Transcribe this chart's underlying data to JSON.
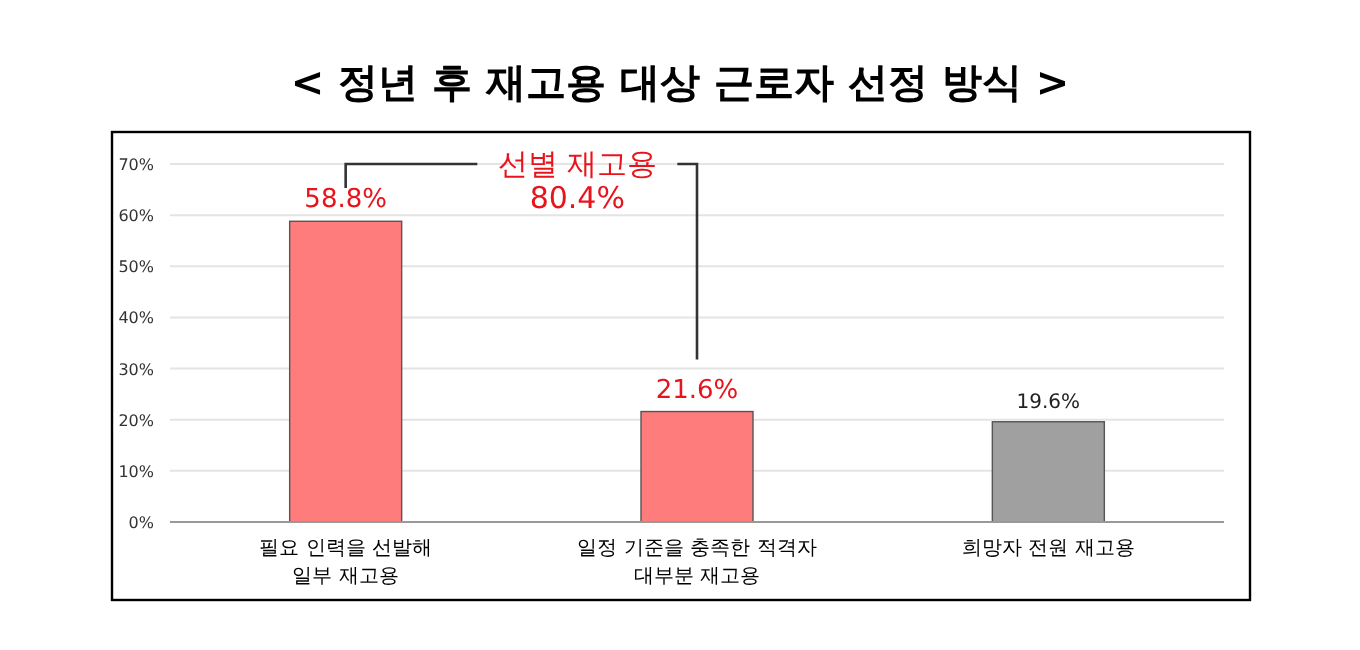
{
  "chart_data": {
    "type": "bar",
    "title": "< 정년 후 재고용 대상 근로자 선정 방식 >",
    "categories": [
      "필요 인력을 선발해\n일부 재고용",
      "일정 기준을 충족한 적격자\n대부분 재고용",
      "희망자 전원 재고용"
    ],
    "values": [
      58.8,
      21.6,
      19.6
    ],
    "colors": [
      "#ff7c7c",
      "#ff7c7c",
      "#a0a0a0"
    ],
    "value_labels": [
      "58.8%",
      "21.6%",
      "19.6%"
    ],
    "ylim": [
      0,
      70
    ],
    "yticks": [
      {
        "value": 0,
        "label": "0%"
      },
      {
        "value": 10,
        "label": "10%"
      },
      {
        "value": 20,
        "label": "20%"
      },
      {
        "value": 30,
        "label": "30%"
      },
      {
        "value": 40,
        "label": "40%"
      },
      {
        "value": 50,
        "label": "50%"
      },
      {
        "value": 60,
        "label": "60%"
      },
      {
        "value": 70,
        "label": "70%"
      }
    ],
    "grid": "y",
    "annotations": [
      "선별 재고용\n80.4%"
    ]
  }
}
